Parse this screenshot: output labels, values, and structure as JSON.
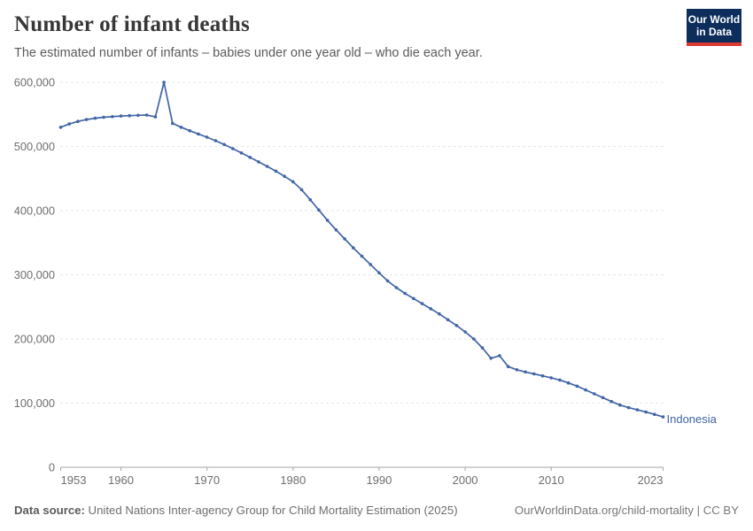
{
  "header": {
    "title": "Number of infant deaths",
    "subtitle": "The estimated number of infants – babies under one year old – who die each year.",
    "logo": {
      "line1": "Our World",
      "line2": "in Data",
      "bg_color": "#0d2e5c",
      "accent_color": "#dc3930"
    }
  },
  "chart_data": {
    "type": "line",
    "title": "Number of infant deaths",
    "xlabel": "",
    "ylabel": "",
    "xlim": [
      1953,
      2023
    ],
    "ylim": [
      0,
      600000
    ],
    "grid": "horizontal-dashed",
    "legend_position": "end-of-line-label",
    "x_ticks": [
      1953,
      1960,
      1970,
      1980,
      1990,
      2000,
      2010,
      2023
    ],
    "y_ticks": [
      0,
      100000,
      200000,
      300000,
      400000,
      500000,
      600000
    ],
    "y_tick_labels": [
      "0",
      "100,000",
      "200,000",
      "300,000",
      "400,000",
      "500,000",
      "600,000"
    ],
    "entity_label": "Indonesia",
    "line_color": "#4165a5",
    "grid_color": "#dcdcdc",
    "axis_color": "#a5a5a5",
    "tick_label_color": "#6e6e6e",
    "series": [
      {
        "name": "Indonesia",
        "color": "#4165a5",
        "x": [
          1953,
          1954,
          1955,
          1956,
          1957,
          1958,
          1959,
          1960,
          1961,
          1962,
          1963,
          1964,
          1965,
          1966,
          1967,
          1968,
          1969,
          1970,
          1971,
          1972,
          1973,
          1974,
          1975,
          1976,
          1977,
          1978,
          1979,
          1980,
          1981,
          1982,
          1983,
          1984,
          1985,
          1986,
          1987,
          1988,
          1989,
          1990,
          1991,
          1992,
          1993,
          1994,
          1995,
          1996,
          1997,
          1998,
          1999,
          2000,
          2001,
          2002,
          2003,
          2004,
          2005,
          2006,
          2007,
          2008,
          2009,
          2010,
          2011,
          2012,
          2013,
          2014,
          2015,
          2016,
          2017,
          2018,
          2019,
          2020,
          2021,
          2022,
          2023
        ],
        "values": [
          530000,
          535000,
          539000,
          542000,
          544000,
          545500,
          546500,
          547500,
          548000,
          548500,
          549000,
          546000,
          600000,
          536000,
          530000,
          524500,
          519500,
          514500,
          509000,
          503000,
          496500,
          490000,
          483000,
          476000,
          469000,
          461500,
          453500,
          445000,
          432500,
          417000,
          401000,
          385000,
          370000,
          356000,
          342000,
          329000,
          316000,
          303000,
          290500,
          280000,
          271000,
          263000,
          255000,
          247000,
          239000,
          230000,
          221000,
          211000,
          200000,
          186000,
          170000,
          174000,
          157000,
          152000,
          148500,
          145500,
          142500,
          139500,
          136000,
          131500,
          126500,
          120500,
          114500,
          108500,
          102500,
          97000,
          93000,
          89500,
          86000,
          82500,
          78500
        ]
      }
    ]
  },
  "footer": {
    "datasource_label": "Data source:",
    "datasource_text": " United Nations Inter-agency Group for Child Mortality Estimation (2025)",
    "link": "OurWorldinData.org/child-mortality | CC BY"
  }
}
